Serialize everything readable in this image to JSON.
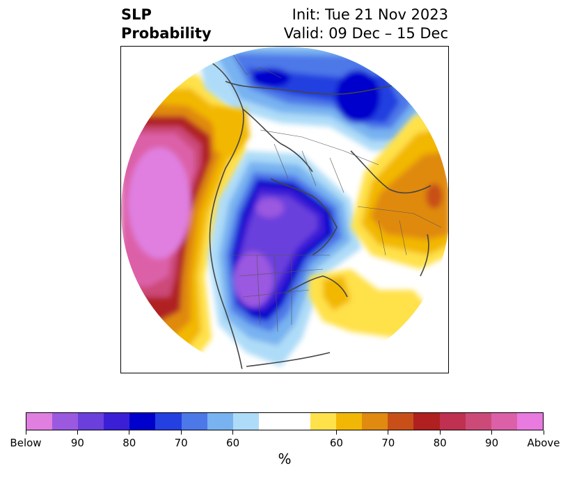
{
  "title": {
    "left_line1": "SLP",
    "left_line2": "Probability",
    "right_line1": "Init: Tue 21 Nov 2023",
    "right_line2": "Valid: 09 Dec – 15 Dec"
  },
  "colorbar": {
    "label": "%",
    "colors": [
      "#e07fe0",
      "#9b59e0",
      "#6a3fdc",
      "#3a1fd6",
      "#0000cc",
      "#2440e0",
      "#4d78e8",
      "#78b2f0",
      "#aedcf8",
      "#ffffff",
      "#ffffff",
      "#ffe14a",
      "#f2b705",
      "#e08a10",
      "#c85018",
      "#b02020",
      "#c03050",
      "#cc4a78",
      "#dc60a8",
      "#e87ae0"
    ],
    "tick_labels": [
      "Below",
      "90",
      "80",
      "70",
      "60",
      "60",
      "70",
      "80",
      "90",
      "Above"
    ]
  },
  "map": {
    "projection": "north-polar-stereographic",
    "colors": {
      "below_ring": "#aedcf8",
      "below_mid": "#4d78e8",
      "below_core": "#0000cc",
      "below_deep": "#6a3fdc",
      "below_max": "#9b59e0",
      "above_ring": "#ffe14a",
      "above_mid": "#f2b705",
      "above_core": "#e08a10",
      "above_red": "#b02020",
      "above_pink": "#cc4a78",
      "above_max": "#e07fe0",
      "coastline": "#444444"
    }
  }
}
